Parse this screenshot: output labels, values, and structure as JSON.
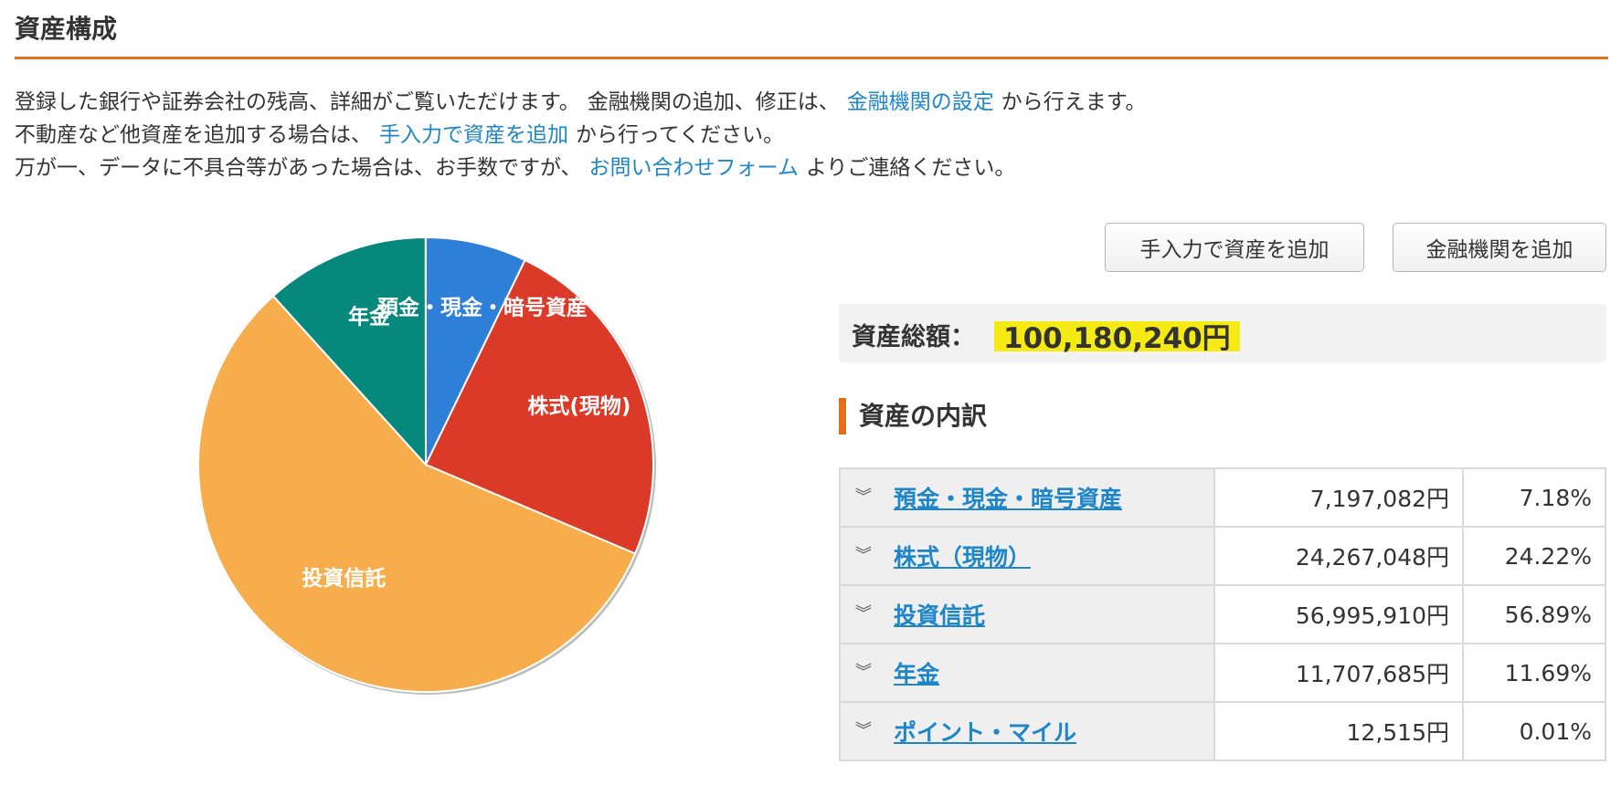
{
  "header": {
    "title": "資産構成"
  },
  "intro": {
    "line1_a": "登録した銀行や証券会社の残高、詳細がご覧いただけます。",
    "line1_b": "金融機関の追加、修正は、",
    "line1_link": "金融機関の設定",
    "line1_c": "から行えます。",
    "line2_a": "不動産など他資産を追加する場合は、",
    "line2_link": "手入力で資産を追加",
    "line2_c": "から行ってください。",
    "line3_a": "万が一、データに不具合等があった場合は、お手数ですが、",
    "line3_link": "お問い合わせフォーム",
    "line3_c": "よりご連絡ください。"
  },
  "buttons": {
    "manual_add": "手入力で資産を追加",
    "add_institution": "金融機関を追加"
  },
  "total": {
    "label": "資産総額：",
    "value": "100,180,240円",
    "highlight_color": "#f6ea14"
  },
  "breakdown": {
    "title": "資産の内訳",
    "rows": [
      {
        "category": "預金・現金・暗号資産",
        "amount": "7,197,082円",
        "percent": "7.18%"
      },
      {
        "category": "株式（現物）",
        "amount": "24,267,048円",
        "percent": "24.22%"
      },
      {
        "category": "投資信託",
        "amount": "56,995,910円",
        "percent": "56.89%"
      },
      {
        "category": "年金",
        "amount": "11,707,685円",
        "percent": "11.69%"
      },
      {
        "category": "ポイント・マイル",
        "amount": "12,515円",
        "percent": "0.01%"
      }
    ]
  },
  "chart_data": {
    "type": "pie",
    "categories": [
      "預金・現金・暗号資産",
      "株式(現物)",
      "投資信託",
      "年金",
      "ポイント・マイル"
    ],
    "values": [
      7.18,
      24.22,
      56.89,
      11.69,
      0.01
    ],
    "slice_labels": [
      "預金・現金・暗号資産",
      "株式(現物)",
      "投資信託",
      "年金",
      ""
    ],
    "colors": [
      "#2d7fd8",
      "#dc3a28",
      "#f8ad4c",
      "#07887d",
      "#5a5a5a"
    ],
    "legend": "none"
  },
  "colors": {
    "accent": "#e0701a",
    "link": "#1e86c8"
  },
  "icons": {
    "row_toggle": "chevron-double-down-icon"
  }
}
